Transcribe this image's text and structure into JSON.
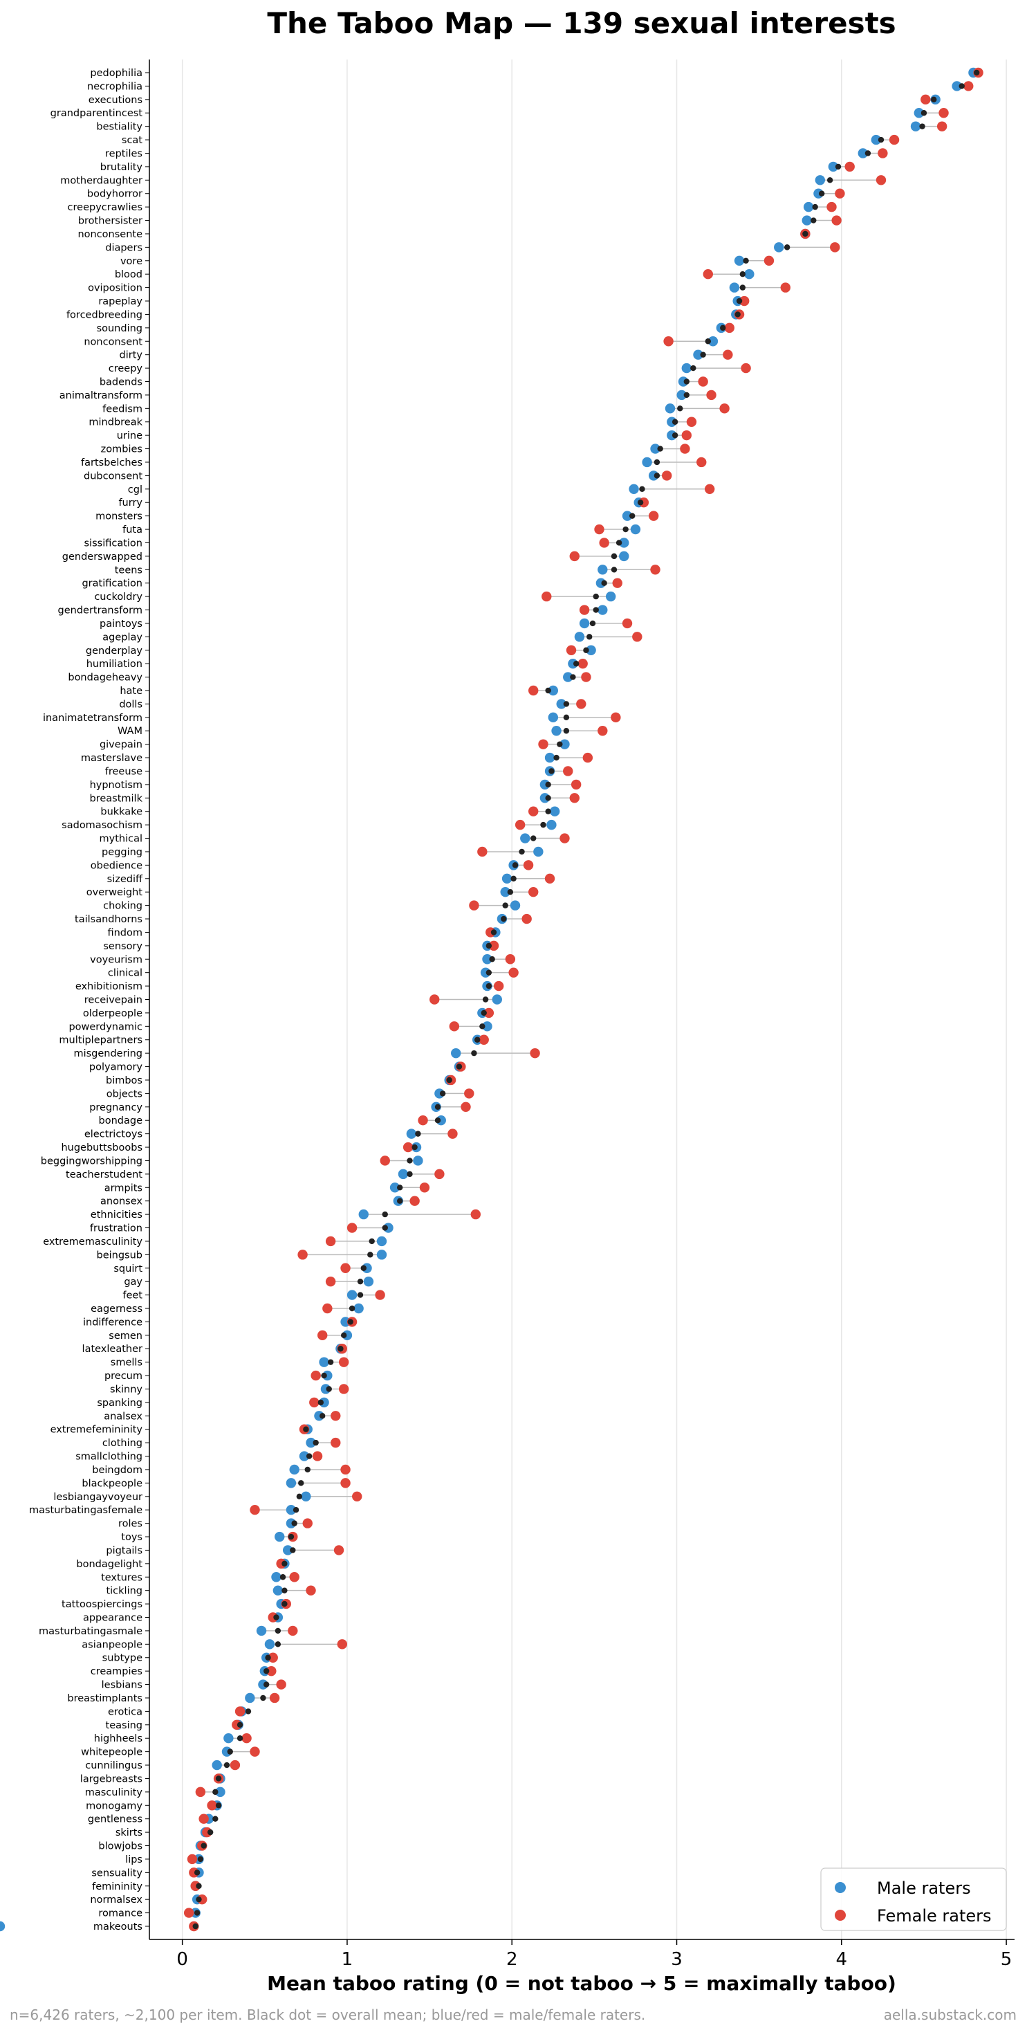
{
  "chart_data": {
    "type": "scatter",
    "title": "The Taboo Map — 139 sexual interests",
    "xlabel": "Mean taboo rating (0 = not taboo → 5 = maximally taboo)",
    "ylabel": "",
    "xlim": [
      -0.2,
      5.05
    ],
    "xticks": [
      0,
      1,
      2,
      3,
      4,
      5
    ],
    "grid": "vertical",
    "legend_position": "bottom-right",
    "legend": [
      {
        "name": "Male raters",
        "color": "#3a8fd0"
      },
      {
        "name": "Female raters",
        "color": "#e0453a"
      }
    ],
    "colors": {
      "male": "#3a8fd0",
      "female": "#e0453a",
      "overall": "#222222",
      "connector": "#bbbbbb"
    },
    "footnote_left": "n=6,426 raters, ~2,100 per item. Black dot = overall mean; blue/red = male/female raters.",
    "footnote_right": "aella.substack.com",
    "categories": [
      "pedophilia",
      "necrophilia",
      "executions",
      "grandparentincest",
      "bestiality",
      "scat",
      "reptiles",
      "brutality",
      "motherdaughter",
      "bodyhorror",
      "creepycrawlies",
      "brothersister",
      "nonconsente",
      "diapers",
      "vore",
      "blood",
      "oviposition",
      "rapeplay",
      "forcedbreeding",
      "sounding",
      "nonconsent",
      "dirty",
      "creepy",
      "badends",
      "animaltransform",
      "feedism",
      "mindbreak",
      "urine",
      "zombies",
      "fartsbelches",
      "dubconsent",
      "cgl",
      "furry",
      "monsters",
      "futa",
      "sissification",
      "genderswapped",
      "teens",
      "gratification",
      "cuckoldry",
      "gendertransform",
      "paintoys",
      "ageplay",
      "genderplay",
      "humiliation",
      "bondageheavy",
      "hate",
      "dolls",
      "inanimatetransform",
      "WAM",
      "givepain",
      "masterslave",
      "freeuse",
      "hypnotism",
      "breastmilk",
      "bukkake",
      "sadomasochism",
      "mythical",
      "pegging",
      "obedience",
      "sizediff",
      "overweight",
      "choking",
      "tailsandhorns",
      "findom",
      "sensory",
      "voyeurism",
      "clinical",
      "exhibitionism",
      "receivepain",
      "olderpeople",
      "powerdynamic",
      "multiplepartners",
      "misgendering",
      "polyamory",
      "bimbos",
      "objects",
      "pregnancy",
      "bondage",
      "electrictoys",
      "hugebuttsboobs",
      "beggingworshipping",
      "teacherstudent",
      "armpits",
      "anonsex",
      "ethnicities",
      "frustration",
      "extrememasculinity",
      "beingsub",
      "squirt",
      "gay",
      "feet",
      "eagerness",
      "indifference",
      "semen",
      "latexleather",
      "smells",
      "precum",
      "skinny",
      "spanking",
      "analsex",
      "extremefemininity",
      "clothing",
      "smallclothing",
      "beingdom",
      "blackpeople",
      "lesbiangayvoyeur",
      "masturbatingasfemale",
      "roles",
      "toys",
      "pigtails",
      "bondagelight",
      "textures",
      "tickling",
      "tattoospiercings",
      "appearance",
      "masturbatingasmale",
      "asianpeople",
      "subtype",
      "creampies",
      "lesbians",
      "breastimplants",
      "erotica",
      "teasing",
      "highheels",
      "whitepeople",
      "cunnilingus",
      "largebreasts",
      "masculinity",
      "monogamy",
      "gentleness",
      "skirts",
      "blowjobs",
      "lips",
      "sensuality",
      "femininity",
      "normalsex",
      "romance",
      "makeouts"
    ],
    "series": [
      {
        "name": "Male raters",
        "values": [
          4.8,
          4.7,
          4.57,
          4.47,
          4.45,
          4.21,
          4.13,
          3.95,
          3.87,
          3.86,
          3.8,
          3.79,
          3.78,
          3.62,
          3.38,
          3.44,
          3.35,
          3.37,
          3.36,
          3.27,
          3.22,
          3.13,
          3.06,
          3.04,
          3.03,
          2.96,
          2.97,
          2.97,
          2.87,
          2.82,
          2.86,
          2.74,
          2.77,
          2.7,
          2.75,
          2.68,
          2.68,
          2.55,
          2.54,
          2.6,
          2.55,
          2.44,
          2.41,
          2.48,
          2.37,
          2.34,
          2.25,
          2.3,
          2.25,
          2.27,
          2.32,
          2.23,
          2.23,
          2.2,
          2.2,
          2.26,
          2.24,
          2.08,
          2.16,
          2.01,
          1.97,
          1.96,
          2.02,
          1.94,
          1.9,
          1.85,
          1.85,
          1.84,
          1.85,
          1.91,
          1.82,
          1.85,
          1.79,
          1.66,
          1.68,
          1.62,
          1.56,
          1.54,
          1.57,
          1.39,
          1.42,
          1.43,
          1.34,
          1.29,
          1.31,
          1.1,
          1.25,
          1.21,
          1.21,
          1.12,
          1.13,
          1.03,
          1.07,
          0.99,
          1.0,
          0.96,
          0.86,
          0.88,
          0.87,
          0.86,
          0.83,
          0.76,
          0.78,
          0.74,
          0.68,
          0.66,
          0.75,
          0.66,
          0.66,
          0.59,
          0.64,
          0.62,
          0.57,
          0.58,
          0.6,
          0.58,
          0.48,
          0.53,
          0.51,
          0.5,
          0.49,
          0.41,
          0.36,
          0.34,
          0.28,
          0.27,
          0.21,
          0.23,
          0.23,
          0.21,
          0.16,
          0.14,
          0.11,
          0.1,
          0.1,
          0.08,
          0.09,
          0.08
        ]
      },
      {
        "name": "Female raters",
        "values": [
          4.83,
          4.77,
          4.51,
          4.62,
          4.61,
          4.32,
          4.25,
          4.05,
          4.24,
          3.99,
          3.94,
          3.97,
          3.78,
          3.96,
          3.56,
          3.19,
          3.66,
          3.41,
          3.38,
          3.32,
          2.95,
          3.31,
          3.42,
          3.16,
          3.21,
          3.29,
          3.09,
          3.06,
          3.05,
          3.15,
          2.94,
          3.2,
          2.8,
          2.86,
          2.53,
          2.56,
          2.38,
          2.87,
          2.64,
          2.21,
          2.44,
          2.7,
          2.76,
          2.36,
          2.43,
          2.45,
          2.13,
          2.42,
          2.63,
          2.55,
          2.19,
          2.46,
          2.34,
          2.39,
          2.38,
          2.13,
          2.05,
          2.32,
          1.82,
          2.1,
          2.23,
          2.13,
          1.77,
          2.09,
          1.87,
          1.89,
          1.99,
          2.01,
          1.92,
          1.53,
          1.86,
          1.65,
          1.83,
          2.14,
          1.69,
          1.63,
          1.74,
          1.72,
          1.46,
          1.64,
          1.37,
          1.23,
          1.56,
          1.47,
          1.41,
          1.78,
          1.03,
          0.9,
          0.73,
          0.99,
          0.9,
          1.2,
          0.88,
          1.03,
          0.85,
          0.97,
          0.98,
          0.81,
          0.98,
          0.8,
          0.93,
          0.74,
          0.93,
          0.82,
          0.99,
          0.99,
          1.06,
          0.44,
          0.76,
          0.67,
          0.95,
          0.6,
          0.68,
          0.78,
          0.63,
          0.55,
          0.67,
          0.97,
          0.55,
          0.54,
          0.6,
          0.56,
          0.35,
          0.33,
          0.39,
          0.44,
          0.32,
          0.22,
          0.11,
          0.18,
          0.13,
          0.15,
          0.12,
          0.06,
          0.07,
          0.08,
          0.12,
          0.04,
          0.07
        ]
      },
      {
        "name": "Overall",
        "values": [
          4.82,
          4.73,
          4.56,
          4.5,
          4.49,
          4.24,
          4.16,
          3.98,
          3.93,
          3.88,
          3.84,
          3.83,
          3.78,
          3.67,
          3.42,
          3.4,
          3.4,
          3.38,
          3.37,
          3.28,
          3.19,
          3.16,
          3.1,
          3.06,
          3.06,
          3.02,
          2.99,
          2.99,
          2.9,
          2.88,
          2.88,
          2.79,
          2.78,
          2.73,
          2.69,
          2.65,
          2.62,
          2.62,
          2.56,
          2.51,
          2.51,
          2.49,
          2.47,
          2.45,
          2.39,
          2.37,
          2.22,
          2.33,
          2.33,
          2.33,
          2.29,
          2.27,
          2.24,
          2.22,
          2.22,
          2.22,
          2.19,
          2.13,
          2.06,
          2.02,
          2.01,
          1.99,
          1.96,
          1.95,
          1.89,
          1.86,
          1.88,
          1.86,
          1.86,
          1.84,
          1.83,
          1.82,
          1.79,
          1.77,
          1.68,
          1.62,
          1.58,
          1.55,
          1.55,
          1.43,
          1.41,
          1.38,
          1.38,
          1.32,
          1.32,
          1.23,
          1.23,
          1.15,
          1.14,
          1.1,
          1.08,
          1.08,
          1.03,
          1.02,
          0.98,
          0.96,
          0.9,
          0.86,
          0.89,
          0.84,
          0.85,
          0.75,
          0.81,
          0.77,
          0.76,
          0.72,
          0.71,
          0.69,
          0.68,
          0.66,
          0.67,
          0.62,
          0.61,
          0.62,
          0.62,
          0.57,
          0.58,
          0.58,
          0.52,
          0.51,
          0.51,
          0.49,
          0.4,
          0.35,
          0.35,
          0.29,
          0.27,
          0.22,
          0.2,
          0.22,
          0.2,
          0.17,
          0.13,
          0.11,
          0.09,
          0.1,
          0.1,
          0.09,
          0.08
        ]
      }
    ]
  }
}
